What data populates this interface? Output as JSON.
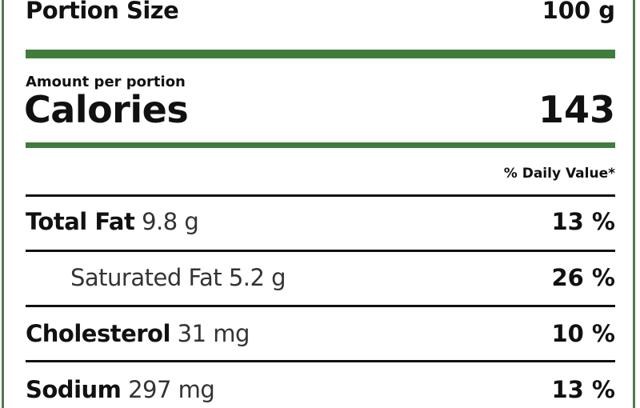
{
  "portion": {
    "label": "Portion Size",
    "value": "100 g"
  },
  "amount_per_portion": "Amount per portion",
  "calories": {
    "label": "Calories",
    "value": "143"
  },
  "daily_value_header": "% Daily Value*",
  "nutrients": [
    {
      "name": "Total Fat",
      "amount": "9.8 g",
      "dv": "13 %"
    },
    {
      "name": "Saturated Fat",
      "amount": "5.2 g",
      "dv": "26 %"
    },
    {
      "name": "Cholesterol",
      "amount": "31 mg",
      "dv": "10 %"
    },
    {
      "name": "Sodium",
      "amount": "297 mg",
      "dv": "13 %"
    }
  ],
  "colors": {
    "accent_green": "#3f7d3d",
    "border_green": "#4f7a4f"
  }
}
